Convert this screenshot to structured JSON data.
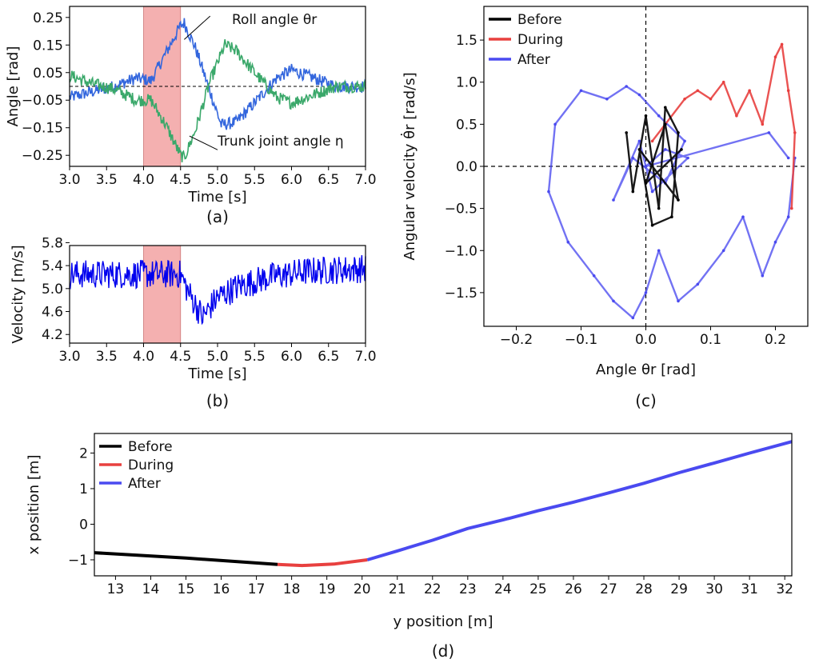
{
  "colors": {
    "before": "#000000",
    "during": "#e8403f",
    "after": "#4a4af0",
    "blue": "#3366dd",
    "green": "#3aa86a",
    "velocity": "#0000ee",
    "shade": "#f4b0b0"
  },
  "chart_data": [
    {
      "id": "a",
      "type": "line",
      "caption": "(a)",
      "xlabel": "Time [s]",
      "ylabel": "Angle [rad]",
      "xlim": [
        3.0,
        7.0
      ],
      "ylim": [
        -0.29,
        0.29
      ],
      "xticks": [
        3.0,
        3.5,
        4.0,
        4.5,
        5.0,
        5.5,
        6.0,
        6.5,
        7.0
      ],
      "xtick_labels": [
        "3.0",
        "3.5",
        "4.0",
        "4.5",
        "5.0",
        "5.5",
        "6.0",
        "6.5",
        "7.0"
      ],
      "yticks": [
        0.25,
        0.15,
        0.05,
        -0.05,
        -0.15,
        -0.25
      ],
      "ytick_labels": [
        "0.25",
        "0.15",
        "0.05",
        "−0.05",
        "−0.15",
        "−0.25"
      ],
      "shaded_span": [
        4.0,
        4.5
      ],
      "hline": 0,
      "series": [
        {
          "name": "Roll angle",
          "key": "roll",
          "knots": [
            [
              3.0,
              -0.04
            ],
            [
              3.3,
              -0.02
            ],
            [
              3.6,
              0.0
            ],
            [
              3.9,
              0.03
            ],
            [
              4.1,
              0.02
            ],
            [
              4.3,
              0.12
            ],
            [
              4.5,
              0.22
            ],
            [
              4.55,
              0.23
            ],
            [
              4.7,
              0.14
            ],
            [
              4.9,
              -0.02
            ],
            [
              5.05,
              -0.14
            ],
            [
              5.25,
              -0.13
            ],
            [
              5.5,
              -0.06
            ],
            [
              5.8,
              0.03
            ],
            [
              6.0,
              0.06
            ],
            [
              6.3,
              0.03
            ],
            [
              6.6,
              0.0
            ],
            [
              7.0,
              0.0
            ]
          ]
        },
        {
          "name": "Trunk joint angle",
          "key": "trunk",
          "knots": [
            [
              3.0,
              0.04
            ],
            [
              3.3,
              0.01
            ],
            [
              3.6,
              -0.01
            ],
            [
              3.9,
              -0.05
            ],
            [
              4.1,
              -0.05
            ],
            [
              4.3,
              -0.14
            ],
            [
              4.5,
              -0.25
            ],
            [
              4.55,
              -0.26
            ],
            [
              4.7,
              -0.16
            ],
            [
              4.9,
              0.02
            ],
            [
              5.1,
              0.15
            ],
            [
              5.25,
              0.13
            ],
            [
              5.5,
              0.05
            ],
            [
              5.8,
              -0.04
            ],
            [
              6.0,
              -0.06
            ],
            [
              6.3,
              -0.03
            ],
            [
              6.6,
              0.0
            ],
            [
              7.0,
              0.0
            ]
          ]
        }
      ],
      "annotations": [
        {
          "text": "Roll angle θr",
          "for": "roll"
        },
        {
          "text": "Trunk joint angle η",
          "for": "trunk"
        }
      ]
    },
    {
      "id": "b",
      "type": "line",
      "caption": "(b)",
      "xlabel": "Time [s]",
      "ylabel": "Velocity [m/s]",
      "xlim": [
        3.0,
        7.0
      ],
      "ylim": [
        4.05,
        5.75
      ],
      "xticks": [
        3.0,
        3.5,
        4.0,
        4.5,
        5.0,
        5.5,
        6.0,
        6.5,
        7.0
      ],
      "xtick_labels": [
        "3.0",
        "3.5",
        "4.0",
        "4.5",
        "5.0",
        "5.5",
        "6.0",
        "6.5",
        "7.0"
      ],
      "yticks": [
        5.8,
        5.4,
        5.0,
        4.6,
        4.2
      ],
      "ytick_labels": [
        "5.8",
        "5.4",
        "5.0",
        "4.6",
        "4.2"
      ],
      "shaded_span": [
        4.0,
        4.5
      ],
      "series": [
        {
          "name": "Velocity",
          "knots": [
            [
              3.0,
              5.25
            ],
            [
              4.5,
              5.25
            ],
            [
              4.6,
              4.95
            ],
            [
              4.8,
              4.5
            ],
            [
              5.0,
              4.85
            ],
            [
              5.3,
              5.05
            ],
            [
              5.7,
              5.2
            ],
            [
              6.2,
              5.3
            ],
            [
              7.0,
              5.35
            ]
          ]
        }
      ]
    },
    {
      "id": "c",
      "type": "scatter-line",
      "caption": "(c)",
      "xlabel": "Angle θr [rad]",
      "ylabel": "Angular velocity θ̇r [rad/s]",
      "xlim": [
        -0.25,
        0.25
      ],
      "ylim": [
        -1.9,
        1.9
      ],
      "xticks": [
        -0.2,
        -0.1,
        0.0,
        0.1,
        0.2
      ],
      "xtick_labels": [
        "−0.2",
        "−0.1",
        "0.0",
        "0.1",
        "0.2"
      ],
      "yticks": [
        1.5,
        1.0,
        0.5,
        0.0,
        -0.5,
        -1.0,
        -1.5
      ],
      "ytick_labels": [
        "1.5",
        "1.0",
        "0.5",
        "0.0",
        "−0.5",
        "−1.0",
        "−1.5"
      ],
      "legend": [
        "Before",
        "During",
        "After"
      ],
      "legend_position": "top-left",
      "series": [
        {
          "name": "Before",
          "points": [
            [
              -0.03,
              0.4
            ],
            [
              -0.02,
              -0.3
            ],
            [
              0.0,
              0.6
            ],
            [
              0.02,
              -0.5
            ],
            [
              0.03,
              0.7
            ],
            [
              0.05,
              0.4
            ],
            [
              0.04,
              -0.6
            ],
            [
              0.01,
              -0.7
            ],
            [
              -0.01,
              0.2
            ],
            [
              0.05,
              -0.4
            ],
            [
              0.03,
              0.5
            ],
            [
              0.0,
              -0.2
            ],
            [
              0.055,
              0.2
            ]
          ]
        },
        {
          "name": "During",
          "points": [
            [
              0.01,
              0.3
            ],
            [
              0.03,
              0.5
            ],
            [
              0.06,
              0.8
            ],
            [
              0.08,
              0.9
            ],
            [
              0.1,
              0.8
            ],
            [
              0.12,
              1.0
            ],
            [
              0.14,
              0.6
            ],
            [
              0.16,
              0.9
            ],
            [
              0.18,
              0.5
            ],
            [
              0.2,
              1.3
            ],
            [
              0.21,
              1.45
            ],
            [
              0.22,
              0.9
            ],
            [
              0.23,
              0.4
            ],
            [
              0.225,
              -0.5
            ]
          ]
        },
        {
          "name": "After",
          "points": [
            [
              0.23,
              0.1
            ],
            [
              0.22,
              -0.6
            ],
            [
              0.2,
              -0.9
            ],
            [
              0.18,
              -1.3
            ],
            [
              0.15,
              -0.6
            ],
            [
              0.12,
              -1.0
            ],
            [
              0.08,
              -1.4
            ],
            [
              0.05,
              -1.6
            ],
            [
              0.02,
              -1.0
            ],
            [
              0.0,
              -1.5
            ],
            [
              -0.02,
              -1.8
            ],
            [
              -0.05,
              -1.6
            ],
            [
              -0.08,
              -1.3
            ],
            [
              -0.12,
              -0.9
            ],
            [
              -0.15,
              -0.3
            ],
            [
              -0.14,
              0.5
            ],
            [
              -0.1,
              0.9
            ],
            [
              -0.06,
              0.8
            ],
            [
              -0.03,
              0.95
            ],
            [
              -0.01,
              0.85
            ],
            [
              0.02,
              0.6
            ],
            [
              0.06,
              0.3
            ],
            [
              0.03,
              -0.2
            ],
            [
              -0.02,
              0.1
            ],
            [
              -0.05,
              -0.4
            ],
            [
              -0.01,
              0.3
            ],
            [
              0.01,
              -0.3
            ],
            [
              0.065,
              0.1
            ],
            [
              0.03,
              0.2
            ],
            [
              0.0,
              0.0
            ],
            [
              0.19,
              0.4
            ],
            [
              0.22,
              0.1
            ]
          ]
        }
      ]
    },
    {
      "id": "d",
      "type": "line",
      "caption": "(d)",
      "xlabel": "y position [m]",
      "ylabel": "x position [m]",
      "xlim": [
        12.4,
        32.2
      ],
      "ylim": [
        -1.45,
        2.55
      ],
      "xticks": [
        13,
        14,
        15,
        16,
        17,
        18,
        19,
        20,
        21,
        22,
        23,
        24,
        25,
        26,
        27,
        28,
        29,
        30,
        31,
        32
      ],
      "xtick_labels": [
        "13",
        "14",
        "15",
        "16",
        "17",
        "18",
        "19",
        "20",
        "21",
        "22",
        "23",
        "24",
        "25",
        "26",
        "27",
        "28",
        "29",
        "30",
        "31",
        "32"
      ],
      "yticks": [
        2,
        1,
        0,
        -1
      ],
      "ytick_labels": [
        "2",
        "1",
        "0",
        "−1"
      ],
      "legend": [
        "Before",
        "During",
        "After"
      ],
      "legend_position": "top-left",
      "series": [
        {
          "name": "Before",
          "points": [
            [
              12.4,
              -0.8
            ],
            [
              15.0,
              -0.95
            ],
            [
              17.6,
              -1.13
            ]
          ]
        },
        {
          "name": "During",
          "points": [
            [
              17.6,
              -1.13
            ],
            [
              18.3,
              -1.16
            ],
            [
              19.2,
              -1.12
            ],
            [
              20.15,
              -1.0
            ]
          ]
        },
        {
          "name": "After",
          "points": [
            [
              20.15,
              -1.0
            ],
            [
              21.0,
              -0.75
            ],
            [
              22.0,
              -0.45
            ],
            [
              23.0,
              -0.12
            ],
            [
              24.0,
              0.12
            ],
            [
              25.0,
              0.38
            ],
            [
              26.0,
              0.62
            ],
            [
              27.0,
              0.88
            ],
            [
              28.0,
              1.15
            ],
            [
              29.0,
              1.45
            ],
            [
              30.0,
              1.72
            ],
            [
              31.0,
              2.0
            ],
            [
              32.2,
              2.32
            ]
          ]
        }
      ]
    }
  ]
}
